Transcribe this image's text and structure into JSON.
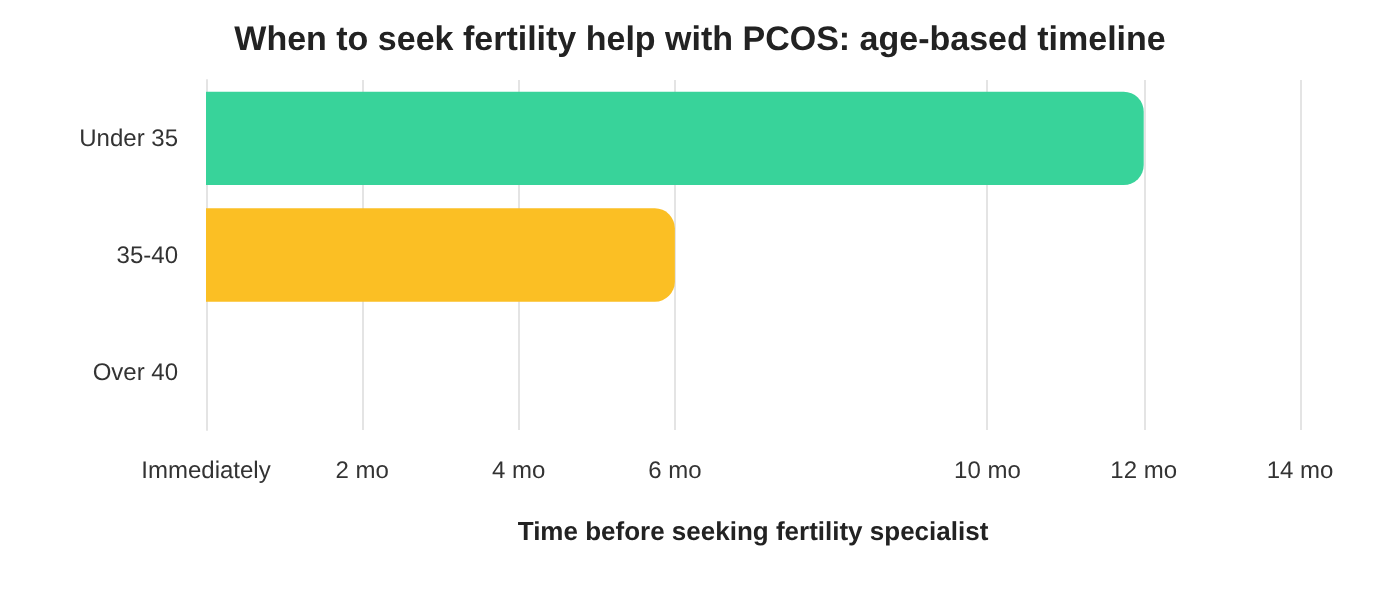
{
  "chart_data": {
    "type": "bar",
    "orientation": "horizontal",
    "title": "When to seek fertility help with PCOS: age-based timeline",
    "xlabel": "Time before seeking fertility specialist",
    "categories": [
      "Under 35",
      "35-40",
      "Over 40"
    ],
    "values": [
      12,
      6,
      0
    ],
    "colors": [
      "#38d39a",
      "#fbbf24",
      "#38d39a"
    ],
    "xlim": [
      0,
      14
    ],
    "xticks": [
      {
        "value": 0,
        "label": "Immediately"
      },
      {
        "value": 2,
        "label": "2 mo"
      },
      {
        "value": 4,
        "label": "4 mo"
      },
      {
        "value": 6,
        "label": "6 mo"
      },
      {
        "value": 10,
        "label": "10 mo"
      },
      {
        "value": 12,
        "label": "12 mo"
      },
      {
        "value": 14,
        "label": "14 mo"
      }
    ],
    "grid": "x"
  }
}
